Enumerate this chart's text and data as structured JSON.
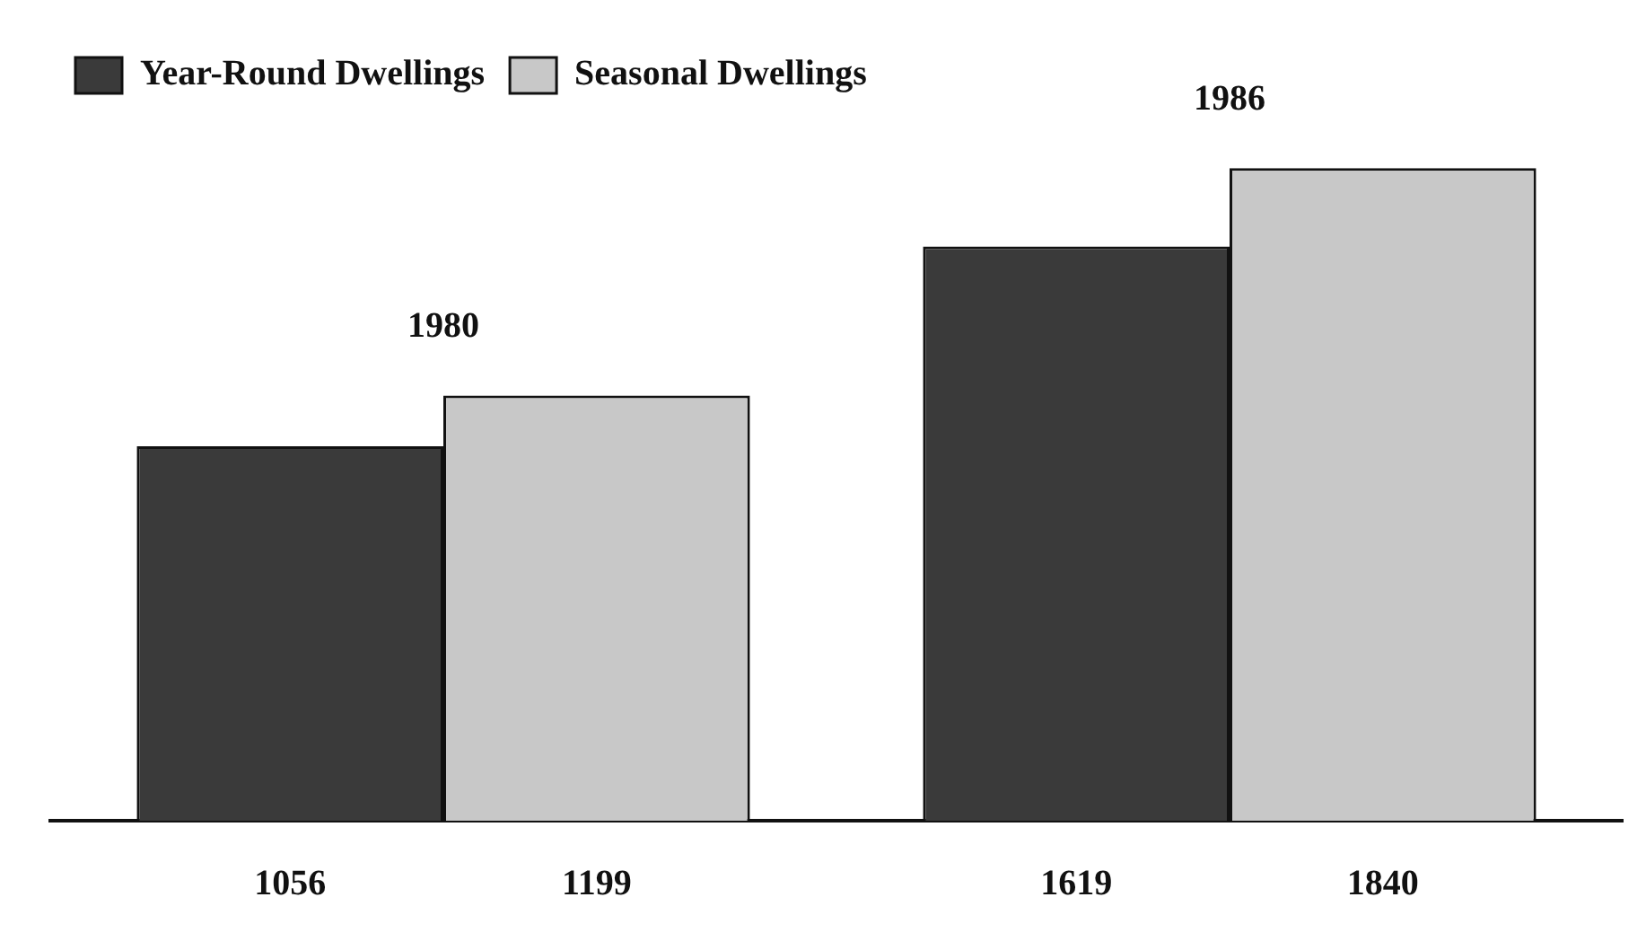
{
  "chart_data": {
    "type": "bar",
    "categories": [
      "1980",
      "1986"
    ],
    "series": [
      {
        "name": "Year-Round Dwellings",
        "color": "#3a3a3a",
        "values": [
          1056,
          1619
        ]
      },
      {
        "name": "Seasonal Dwellings",
        "color": "#c8c8c8",
        "values": [
          1199,
          1840
        ]
      }
    ],
    "data_labels": true,
    "legend": "top left",
    "grid": false,
    "tick_labels": "x"
  }
}
